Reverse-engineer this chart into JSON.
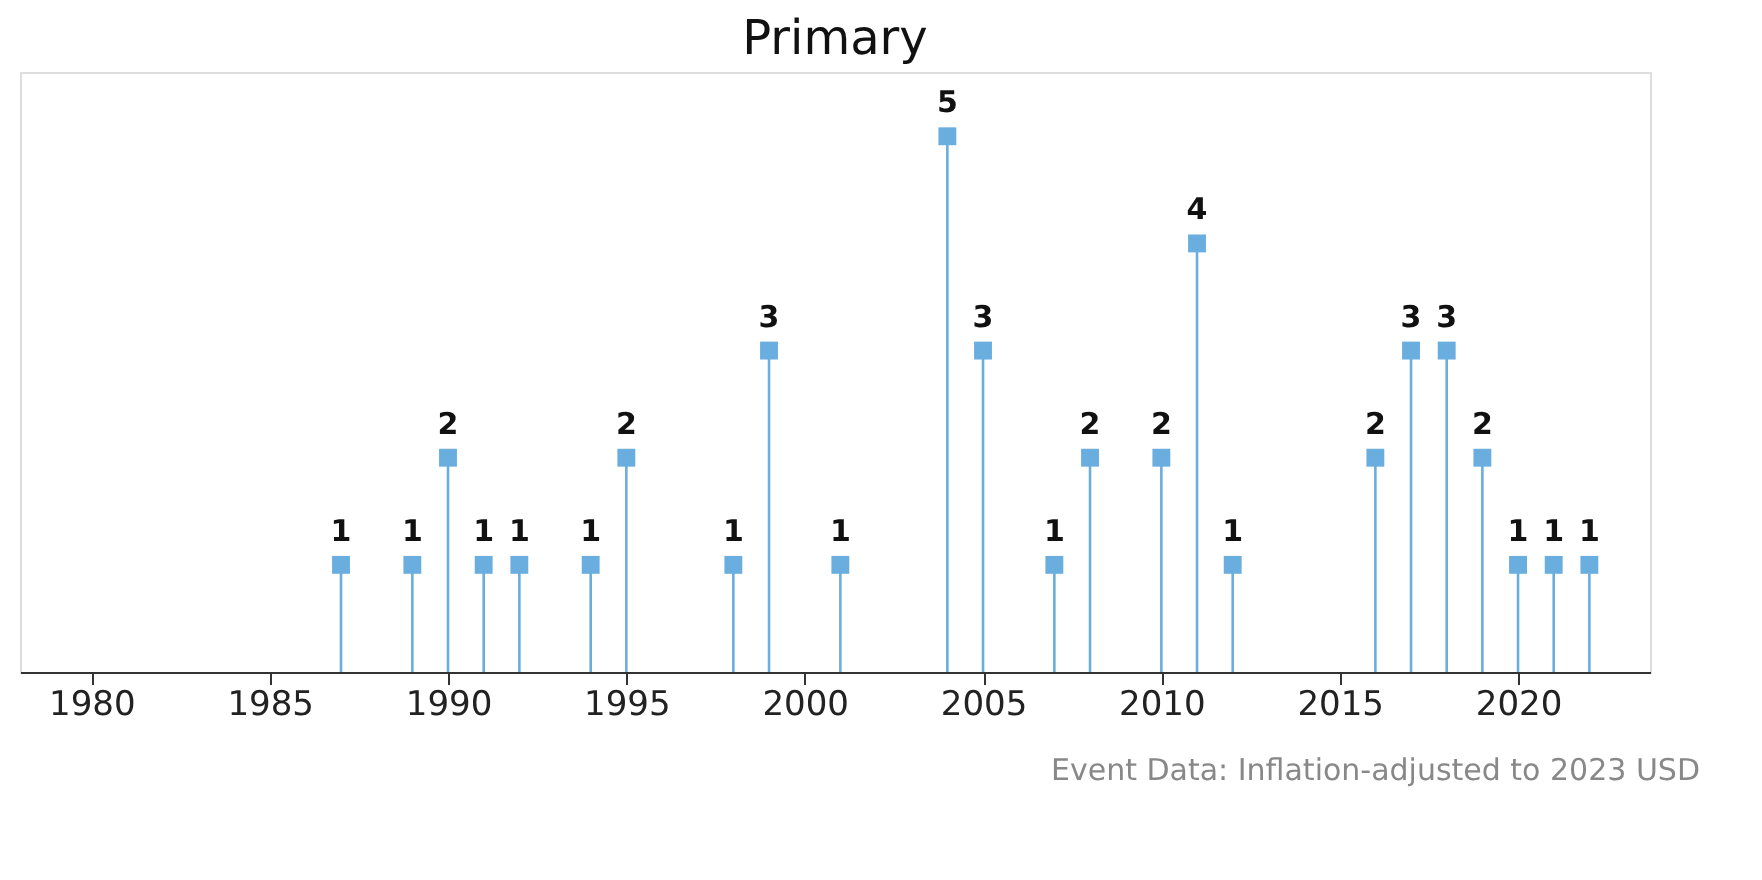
{
  "chart_data": {
    "type": "lollipop",
    "title": "Primary",
    "x": [
      1987,
      1989,
      1990,
      1991,
      1992,
      1994,
      1995,
      1998,
      1999,
      2001,
      2004,
      2005,
      2007,
      2008,
      2010,
      2011,
      2012,
      2016,
      2017,
      2018,
      2019,
      2020,
      2021,
      2022
    ],
    "values": [
      1,
      1,
      2,
      1,
      1,
      1,
      2,
      1,
      3,
      1,
      5,
      3,
      1,
      2,
      2,
      4,
      1,
      2,
      3,
      3,
      2,
      1,
      1,
      1
    ],
    "color": "#6aaee0",
    "marker": "square",
    "data_labels": true,
    "xlim": [
      1978,
      2023.7
    ],
    "xticks": [
      1980,
      1985,
      1990,
      1995,
      2000,
      2005,
      2010,
      2015,
      2020
    ],
    "tick_labels": "x",
    "grid": false,
    "annotations": [
      "Event Data: Inflation-adjusted to 2023 USD"
    ]
  }
}
